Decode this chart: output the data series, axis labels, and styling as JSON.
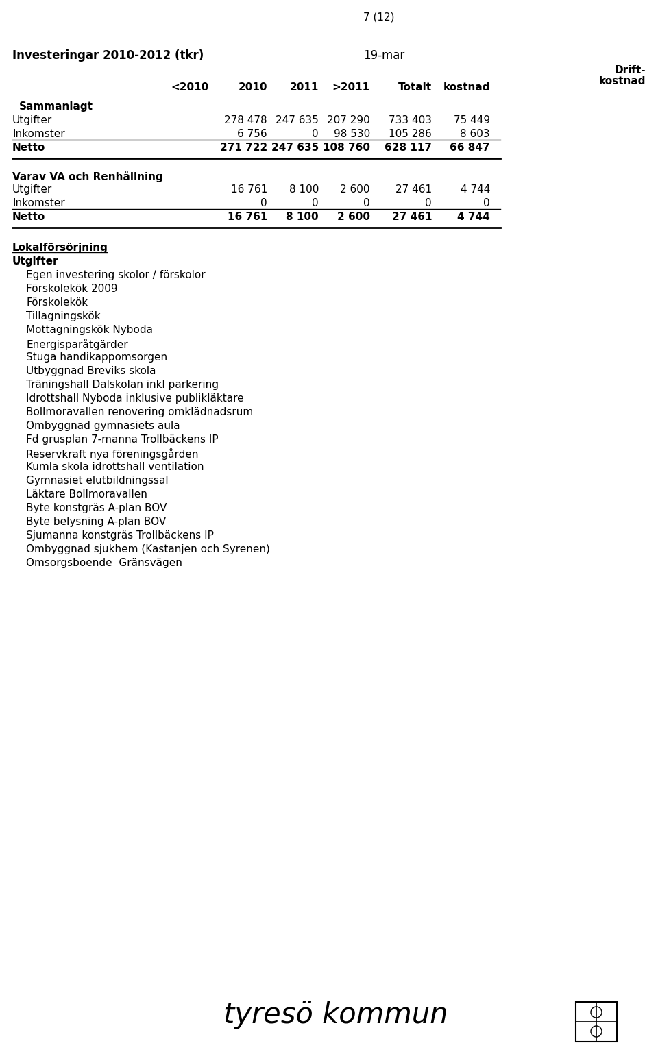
{
  "page_number": "7 (12)",
  "title_left": "Investeringar 2010-2012 (tkr)",
  "title_right": "19-mar",
  "drift_label": "Drift-",
  "kostnad_label": "kostnad",
  "col_headers": [
    "<2010",
    "2010",
    "2011",
    ">2011",
    "Totalt",
    "kostnad"
  ],
  "col_positions": [
    305,
    390,
    465,
    540,
    630,
    715
  ],
  "section1_title": "Sammanlagt",
  "section1_rows": [
    {
      "label": "Utgifter",
      "y2010": "278 478",
      "y2011": "247 635",
      "gt2011": "207 290",
      "totalt": "733 403",
      "drift": "75 449",
      "bold": false
    },
    {
      "label": "Inkomster",
      "y2010": "6 756",
      "y2011": "0",
      "gt2011": "98 530",
      "totalt": "105 286",
      "drift": "8 603",
      "bold": false
    },
    {
      "label": "Netto",
      "y2010": "271 722",
      "y2011": "247 635",
      "gt2011": "108 760",
      "totalt": "628 117",
      "drift": "66 847",
      "bold": true
    }
  ],
  "section2_title": "Varav VA och Renhållning",
  "section2_rows": [
    {
      "label": "Utgifter",
      "y2010": "16 761",
      "y2011": "8 100",
      "gt2011": "2 600",
      "totalt": "27 461",
      "drift": "4 744",
      "bold": false
    },
    {
      "label": "Inkomster",
      "y2010": "0",
      "y2011": "0",
      "gt2011": "0",
      "totalt": "0",
      "drift": "0",
      "bold": false
    },
    {
      "label": "Netto",
      "y2010": "16 761",
      "y2011": "8 100",
      "gt2011": "2 600",
      "totalt": "27 461",
      "drift": "4 744",
      "bold": true
    }
  ],
  "section3_title": "Lokalförsörjning",
  "section3_subtitle": "Utgifter",
  "section3_items": [
    "Egen investering skolor / förskolor",
    "Förskolekök 2009",
    "Förskolekök",
    "Tillagningskök",
    "Mottagningskök Nyboda",
    "Energisparåtgärder",
    "Stuga handikappomsorgen",
    "Utbyggnad Breviks skola",
    "Träningshall Dalskolan inkl parkering",
    "Idrottshall Nyboda inklusive publikläktare",
    "Bollmoravallen renovering omklädnadsrum",
    "Ombyggnad gymnasiets aula",
    "Fd grusplan 7-manna Trollbäckens IP",
    "Reservkraft nya föreningsgården",
    "Kumla skola idrottshall ventilation",
    "Gymnasiet elutbildningssal",
    "Läktare Bollmoravallen",
    "Byte konstgräs A-plan BOV",
    "Byte belysning A-plan BOV",
    "Sjumanna konstgräs Trollbäckens IP",
    "Ombyggnad sjukhem (Kastanjen och Syrenen)",
    "Omsorgsboende  Gränsvägen"
  ],
  "footer_text": "tyresö kommun",
  "bg_color": "#ffffff",
  "text_color": "#000000"
}
